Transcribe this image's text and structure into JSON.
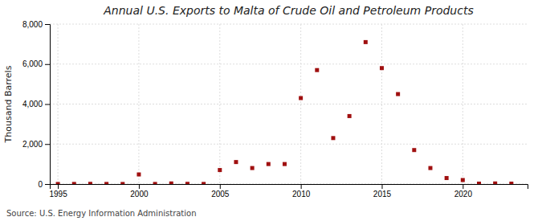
{
  "chart_data": {
    "type": "scatter",
    "title": "Annual U.S. Exports to Malta of Crude Oil and Petroleum Products",
    "ylabel": "Thousand Barrels",
    "annotation": "Source: U.S. Energy Information Administration",
    "x": [
      1995,
      1996,
      1997,
      1998,
      1999,
      2000,
      2001,
      2002,
      2003,
      2004,
      2005,
      2006,
      2007,
      2008,
      2009,
      2010,
      2011,
      2012,
      2013,
      2014,
      2015,
      2016,
      2017,
      2018,
      2019,
      2020,
      2021,
      2022,
      2023
    ],
    "values": [
      2,
      5,
      10,
      5,
      3,
      480,
      5,
      30,
      10,
      5,
      700,
      1100,
      800,
      1000,
      1000,
      4300,
      5700,
      2300,
      3400,
      7100,
      5800,
      4500,
      1700,
      800,
      300,
      200,
      20,
      30,
      20
    ],
    "color": "#a01010",
    "marker": "square",
    "xlim": [
      1994.5,
      2024
    ],
    "xticks": [
      1995,
      2000,
      2005,
      2010,
      2015,
      2020
    ],
    "ylim": [
      0,
      8000
    ],
    "yticks": [
      0,
      {
        "value": 2000,
        "label": "2,000"
      },
      {
        "value": 4000,
        "label": "4,000"
      },
      {
        "value": 6000,
        "label": "6,000"
      },
      {
        "value": 8000,
        "label": "8,000"
      }
    ],
    "grid": true
  }
}
